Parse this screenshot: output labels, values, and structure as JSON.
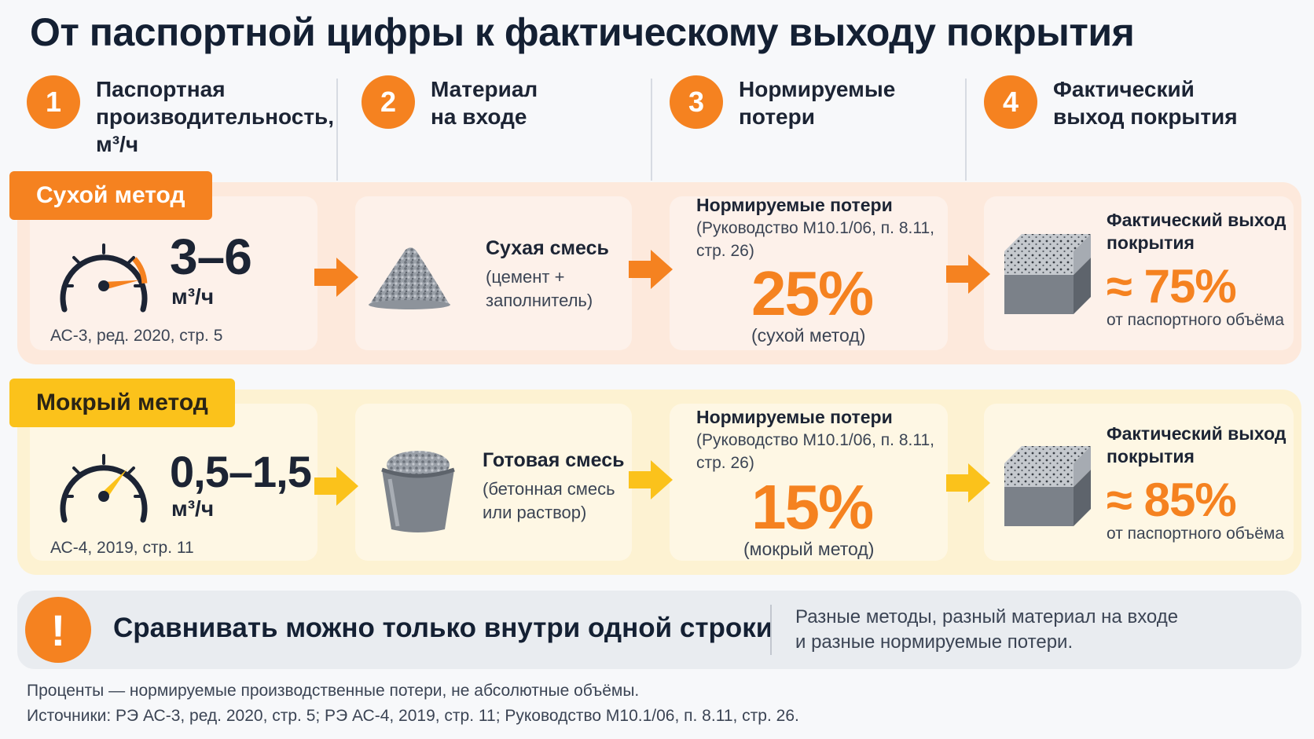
{
  "title": "От паспортной цифры к фактическому выходу покрытия",
  "steps": [
    {
      "num": "1",
      "label": "Паспортная\nпроизводительность,\nм³/ч"
    },
    {
      "num": "2",
      "label": "Материал\nна входе"
    },
    {
      "num": "3",
      "label": "Нормируемые\nпотери"
    },
    {
      "num": "4",
      "label": "Фактический\nвыход покрытия"
    }
  ],
  "rows": {
    "dry": {
      "tag": "Сухой метод",
      "gauge_level": 0.8,
      "value": "3–6",
      "unit": "м³/ч",
      "source": "АС-3, ред. 2020, стр. 5",
      "material_title": "Сухая смесь",
      "material_sub": "(цемент +\nзаполнитель)",
      "material_icon": "gravel-pile-icon",
      "loss_title": "Нормируемые потери",
      "loss_ref": "(Руководство М10.1/06, п. 8.11,\nстр. 26)",
      "loss_pct": "25%",
      "loss_note": "(сухой метод)",
      "out_title": "Фактический выход\nпокрытия",
      "out_pct": "≈ 75%",
      "out_note": "от паспортного объёма"
    },
    "wet": {
      "tag": "Мокрый метод",
      "gauge_level": 0.65,
      "value": "0,5–1,5",
      "unit": "м³/ч",
      "source": "АС-4, 2019, стр. 11",
      "material_title": "Готовая смесь",
      "material_sub": "(бетонная смесь\nили раствор)",
      "material_icon": "bucket-icon",
      "loss_title": "Нормируемые потери",
      "loss_ref": "(Руководство М10.1/06, п. 8.11,\nстр. 26)",
      "loss_pct": "15%",
      "loss_note": "(мокрый метод)",
      "out_title": "Фактический выход\nпокрытия",
      "out_pct": "≈ 85%",
      "out_note": "от паспортного объёма"
    }
  },
  "warning": {
    "icon": "!",
    "main": "Сравнивать можно только внутри одной строки",
    "sub": "Разные методы, разный материал на входе\nи разные нормируемые потери."
  },
  "footer": {
    "line1": "Проценты — нормируемые производственные потери, не абсолютные объёмы.",
    "line2": "Источники: РЭ АС-3, ред. 2020, стр. 5; РЭ АС-4, 2019, стр. 11; Руководство М10.1/06, п. 8.11, стр. 26."
  },
  "colors": {
    "accent_orange": "#f58220",
    "accent_yellow": "#fbc21b",
    "dry_row": "#fde9dc",
    "wet_row": "#fdf2d2"
  }
}
